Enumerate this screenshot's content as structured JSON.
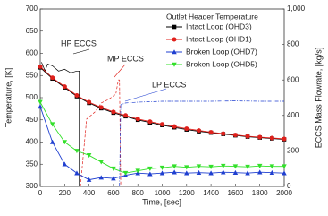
{
  "chart_data": {
    "type": "line",
    "xlabel": "Time, [sec]",
    "ylabel": "Temperature, [K]",
    "y2label": "ECCS Mass Flowrate, [kg/s]",
    "xlim": [
      0,
      2000
    ],
    "xticks": [
      0,
      200,
      400,
      600,
      800,
      1000,
      1200,
      1400,
      1600,
      1800,
      2000
    ],
    "ylim": [
      300,
      700
    ],
    "yticks": [
      300,
      350,
      400,
      450,
      500,
      550,
      600,
      650,
      700
    ],
    "y2lim": [
      0,
      1000
    ],
    "y2ticks": [
      0,
      200,
      400,
      600,
      800,
      {
        "value": 1000,
        "label": "1,000"
      }
    ],
    "legend_title": "Outlet Header Temperature",
    "legend": "upper right",
    "x": [
      0,
      100,
      200,
      300,
      400,
      500,
      600,
      700,
      800,
      900,
      1000,
      1100,
      1200,
      1300,
      1400,
      1500,
      1600,
      1700,
      1800,
      1900,
      2000
    ],
    "series": [
      {
        "name": "Intact Loop (OHD3)",
        "color": "#000000",
        "marker": "square",
        "values": [
          568,
          543,
          523,
          503,
          488,
          476,
          466,
          458,
          450,
          444,
          438,
          433,
          428,
          424,
          421,
          418,
          415,
          412,
          410,
          408,
          406
        ]
      },
      {
        "name": "Intact Loop (OHD1)",
        "color": "#e0201b",
        "marker": "circle",
        "values": [
          570,
          545,
          525,
          505,
          490,
          478,
          468,
          460,
          452,
          446,
          440,
          435,
          430,
          426,
          422,
          419,
          416,
          413,
          411,
          409,
          407
        ]
      },
      {
        "name": "Broken Loop (OHD7)",
        "color": "#1f3fd0",
        "marker": "triangle-up",
        "values": [
          480,
          400,
          350,
          330,
          315,
          320,
          318,
          325,
          330,
          328,
          330,
          332,
          330,
          331,
          330,
          332,
          331,
          330,
          332,
          331,
          330
        ]
      },
      {
        "name": "Broken Loop (OHD5)",
        "color": "#33e02a",
        "marker": "triangle-down",
        "values": [
          490,
          440,
          400,
          380,
          370,
          355,
          340,
          330,
          335,
          340,
          342,
          345,
          343,
          345,
          344,
          346,
          345,
          344,
          346,
          345,
          345
        ]
      }
    ],
    "annotated_series": [
      {
        "name": "HP ECCS",
        "color": "#000000",
        "axis": "y2",
        "dash": "solid",
        "x": [
          10,
          40,
          60,
          100,
          150,
          200,
          250,
          300,
          320,
          320
        ],
        "values": [
          700,
          650,
          690,
          680,
          650,
          660,
          640,
          650,
          650,
          0
        ]
      },
      {
        "name": "MP ECCS",
        "color": "#e0201b",
        "axis": "y2",
        "dash": "dashed",
        "x": [
          330,
          380,
          450,
          500,
          560,
          620,
          640,
          650,
          660
        ],
        "values": [
          0,
          380,
          420,
          470,
          490,
          520,
          600,
          600,
          0
        ]
      },
      {
        "name": "LP ECCS",
        "color": "#1f3fd0",
        "axis": "y2",
        "dash": "dash-dot",
        "x": [
          650,
          660,
          700,
          800,
          1000,
          1200,
          1400,
          1600,
          1800,
          2000
        ],
        "values": [
          0,
          460,
          470,
          475,
          480,
          480,
          480,
          482,
          480,
          480
        ]
      }
    ]
  }
}
